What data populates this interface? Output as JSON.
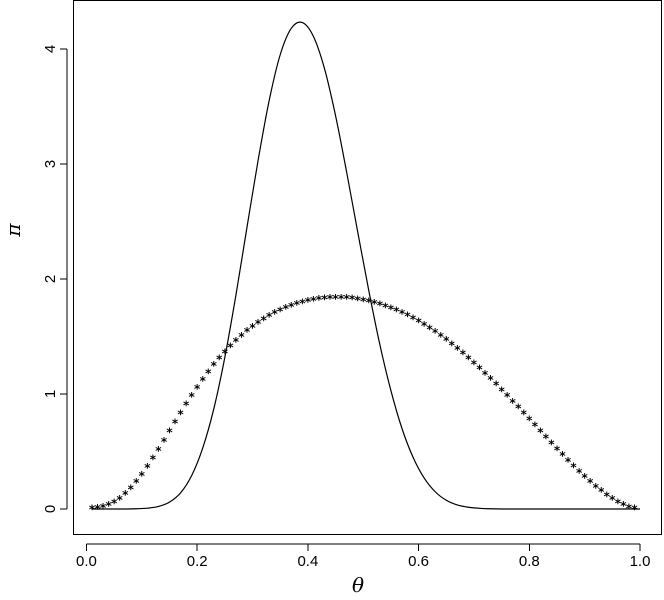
{
  "chart_data": {
    "type": "line",
    "title": "",
    "xlabel": "θ",
    "ylabel": "π",
    "xlim": [
      0,
      1.02
    ],
    "ylim": [
      -0.05,
      4.4
    ],
    "grid": false,
    "x_ticks": [
      "0.0",
      "0.2",
      "0.4",
      "0.6",
      "0.8",
      "1.0"
    ],
    "y_ticks": [
      "0",
      "1",
      "2",
      "3",
      "4"
    ],
    "series": [
      {
        "style": "solid-line",
        "x": [
          0.01,
          0.03,
          0.05,
          0.07,
          0.09,
          0.11,
          0.13,
          0.15,
          0.17,
          0.19,
          0.21,
          0.23,
          0.25,
          0.27,
          0.29,
          0.31,
          0.33,
          0.35,
          0.37,
          0.39,
          0.41,
          0.43,
          0.45,
          0.47,
          0.49,
          0.51,
          0.53,
          0.55,
          0.57,
          0.59,
          0.61,
          0.63,
          0.65,
          0.67,
          0.69,
          0.71,
          0.73,
          0.75,
          0.77,
          0.79,
          0.81,
          0.83,
          0.85,
          0.87,
          0.89,
          0.91,
          0.93,
          0.95,
          0.97,
          0.99,
          1.0
        ],
        "y": [
          0,
          0,
          0,
          0,
          0.002,
          0.007,
          0.022,
          0.06,
          0.14,
          0.29,
          0.53,
          0.87,
          1.32,
          1.86,
          2.45,
          3.03,
          3.55,
          3.95,
          4.18,
          4.23,
          4.11,
          3.83,
          3.42,
          2.93,
          2.41,
          1.9,
          1.43,
          1.03,
          0.7,
          0.45,
          0.27,
          0.15,
          0.076,
          0.035,
          0.015,
          0.006,
          0.002,
          0,
          0,
          0,
          0,
          0,
          0,
          0,
          0,
          0,
          0,
          0,
          0,
          0,
          0
        ]
      },
      {
        "style": "star-markers",
        "x": [
          0.01,
          0.02,
          0.03,
          0.04,
          0.05,
          0.06,
          0.07,
          0.08,
          0.09,
          0.1,
          0.11,
          0.12,
          0.13,
          0.14,
          0.15,
          0.16,
          0.17,
          0.18,
          0.19,
          0.2,
          0.21,
          0.22,
          0.23,
          0.24,
          0.25,
          0.26,
          0.27,
          0.28,
          0.29,
          0.3,
          0.31,
          0.32,
          0.33,
          0.34,
          0.35,
          0.36,
          0.37,
          0.38,
          0.39,
          0.4,
          0.41,
          0.42,
          0.43,
          0.44,
          0.45,
          0.46,
          0.47,
          0.48,
          0.49,
          0.5,
          0.51,
          0.52,
          0.53,
          0.54,
          0.55,
          0.56,
          0.57,
          0.58,
          0.59,
          0.6,
          0.61,
          0.62,
          0.63,
          0.64,
          0.65,
          0.66,
          0.67,
          0.68,
          0.69,
          0.7,
          0.71,
          0.72,
          0.73,
          0.74,
          0.75,
          0.76,
          0.77,
          0.78,
          0.79,
          0.8,
          0.81,
          0.82,
          0.83,
          0.84,
          0.85,
          0.86,
          0.87,
          0.88,
          0.89,
          0.9,
          0.91,
          0.92,
          0.93,
          0.94,
          0.95,
          0.96,
          0.97,
          0.98,
          0.99
        ],
        "y": [
          0.0006,
          0.0041,
          0.0129,
          0.0286,
          0.052,
          0.0838,
          0.1241,
          0.1726,
          0.2288,
          0.2916,
          0.3602,
          0.4333,
          0.5099,
          0.5886,
          0.6683,
          0.748,
          0.8267,
          0.9037,
          0.9783,
          1.05,
          1.1186,
          1.1839,
          1.2457,
          1.3039,
          1.3584,
          1.4094,
          1.4568,
          1.5008,
          1.5414,
          1.5788,
          1.6131,
          1.6444,
          1.6728,
          1.6986,
          1.7218,
          1.7425,
          1.7609,
          1.777,
          1.7909,
          1.8026,
          1.8123,
          1.8199,
          1.8255,
          1.8292,
          1.8308,
          1.8305,
          1.8283,
          1.8241,
          1.818,
          1.8099,
          1.7999,
          1.788,
          1.7742,
          1.7584,
          1.7408,
          1.7213,
          1.6999,
          1.6766,
          1.6515,
          1.6245,
          1.5958,
          1.5653,
          1.533,
          1.499,
          1.4634,
          1.4261,
          1.3873,
          1.3469,
          1.3051,
          1.2619,
          1.2174,
          1.1716,
          1.1247,
          1.0767,
          1.0278,
          0.978,
          0.9276,
          0.8765,
          0.8249,
          0.773,
          0.7209,
          0.6688,
          0.6168,
          0.5652,
          0.5141,
          0.4637,
          0.4142,
          0.3659,
          0.3189,
          0.2736,
          0.2302,
          0.189,
          0.1503,
          0.1144,
          0.0818,
          0.053,
          0.0287,
          0.0099,
          0.0008
        ]
      }
    ]
  }
}
